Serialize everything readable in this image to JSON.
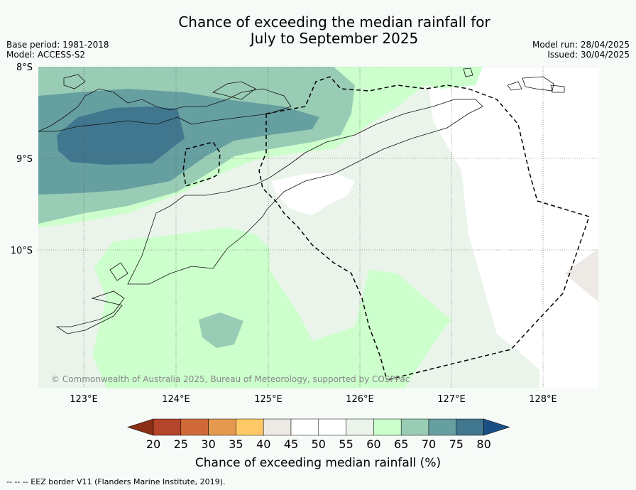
{
  "title_line1": "Chance of exceeding the median rainfall for",
  "title_line2": "July to September 2025",
  "base_period": "Base period: 1981-2018",
  "model": "Model: ACCESS-S2",
  "model_run": "Model run: 28/04/2025",
  "issued": "Issued: 30/04/2025",
  "copyright": "© Commonwealth of Australia 2025, Bureau of Meteorology, supported by COSPPac",
  "lat_labels": [
    "8°S",
    "9°S",
    "10°S"
  ],
  "lon_labels": [
    "123°E",
    "124°E",
    "125°E",
    "126°E",
    "127°E",
    "128°E"
  ],
  "colorbar": {
    "ticks": [
      "20",
      "25",
      "30",
      "35",
      "40",
      "45",
      "50",
      "55",
      "60",
      "65",
      "70",
      "75",
      "80"
    ],
    "colors": [
      "#8b2e16",
      "#b5452a",
      "#cf6a38",
      "#e39a4e",
      "#fec966",
      "#ede9e4",
      "#ffffff",
      "#ffffff",
      "#eaf4ea",
      "#ccffcc",
      "#99ccb4",
      "#669fa0",
      "#40778f",
      "#1a4f85"
    ],
    "label": "Chance of exceeding median rainfall (%)"
  },
  "footer": "--  --  -- EEZ border V11 (Flanders Marine Institute, 2019)."
}
